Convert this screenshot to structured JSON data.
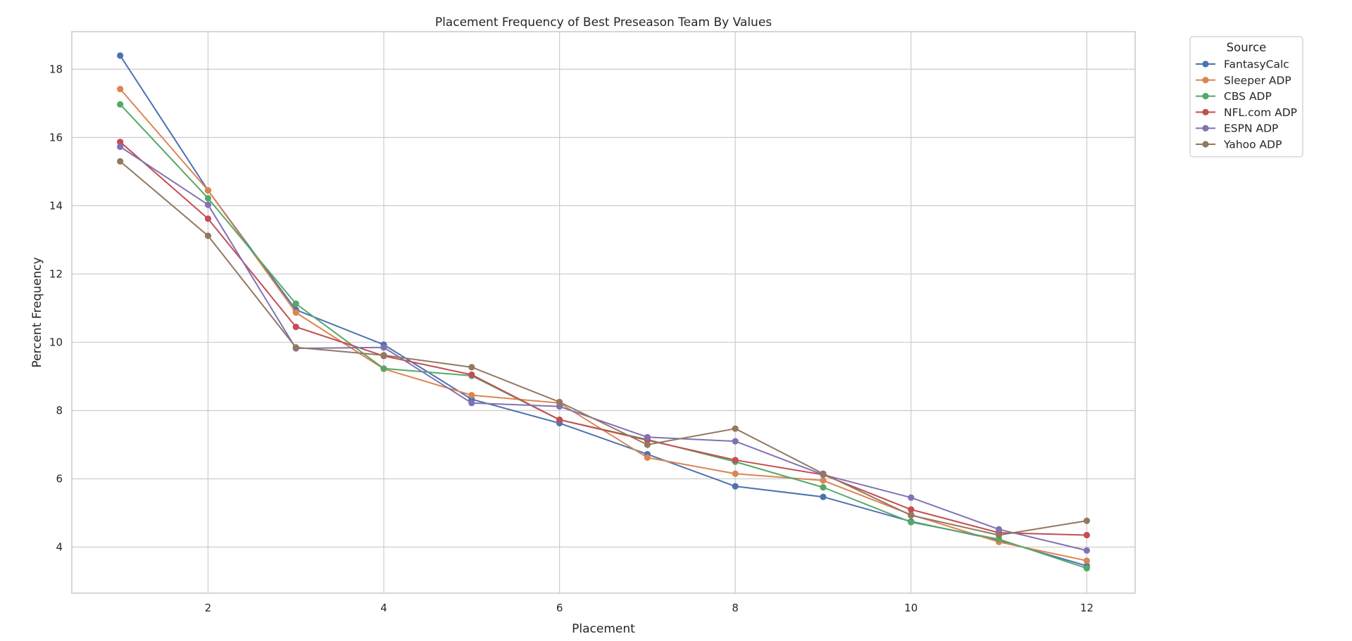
{
  "chart_data": {
    "type": "line",
    "title": "Placement Frequency of Best Preseason Team By Values",
    "xlabel": "Placement",
    "ylabel": "Percent Frequency",
    "x": [
      1,
      2,
      3,
      4,
      5,
      6,
      7,
      8,
      9,
      10,
      11,
      12
    ],
    "xlim": [
      0.45,
      12.55
    ],
    "ylim": [
      2.65,
      19.1
    ],
    "xticks": [
      2,
      4,
      6,
      8,
      10,
      12
    ],
    "yticks": [
      4,
      6,
      8,
      10,
      12,
      14,
      16,
      18
    ],
    "grid": true,
    "legend": {
      "title": "Source",
      "placement": "outside-top-right"
    },
    "series": [
      {
        "name": "FantasyCalc",
        "color": "#4c72b0",
        "values": [
          18.4,
          14.45,
          10.95,
          9.93,
          8.33,
          7.63,
          6.72,
          5.78,
          5.47,
          4.75,
          4.2,
          3.45
        ]
      },
      {
        "name": "Sleeper ADP",
        "color": "#dd8452",
        "values": [
          17.42,
          14.45,
          10.87,
          9.22,
          8.45,
          8.22,
          6.62,
          6.15,
          5.95,
          4.95,
          4.15,
          3.6
        ]
      },
      {
        "name": "CBS ADP",
        "color": "#55a868",
        "values": [
          16.97,
          14.22,
          11.13,
          9.23,
          9.02,
          7.73,
          7.15,
          6.5,
          5.75,
          4.73,
          4.23,
          3.38
        ]
      },
      {
        "name": "NFL.com ADP",
        "color": "#c44e52",
        "values": [
          15.87,
          13.62,
          10.45,
          9.6,
          9.05,
          7.73,
          7.13,
          6.55,
          6.12,
          5.1,
          4.42,
          4.35
        ]
      },
      {
        "name": "ESPN ADP",
        "color": "#8172b3",
        "values": [
          15.73,
          14.03,
          9.82,
          9.85,
          8.22,
          8.12,
          7.22,
          7.1,
          6.12,
          5.45,
          4.52,
          3.9
        ]
      },
      {
        "name": "Yahoo ADP",
        "color": "#937860",
        "values": [
          15.3,
          13.12,
          9.85,
          9.62,
          9.27,
          8.25,
          7.0,
          7.47,
          6.15,
          4.93,
          4.35,
          4.77
        ]
      }
    ]
  }
}
